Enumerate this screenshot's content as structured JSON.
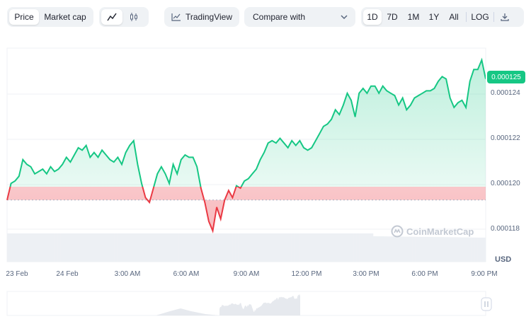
{
  "toolbar": {
    "price_label": "Price",
    "market_cap_label": "Market cap",
    "line_chart_icon": "line-chart-icon",
    "candlestick_icon": "candlestick-icon",
    "tradingview_label": "TradingView",
    "compare_label": "Compare with",
    "ranges": [
      "1D",
      "7D",
      "1M",
      "1Y",
      "All"
    ],
    "active_range": "1D",
    "log_label": "LOG",
    "download_icon": "download-icon"
  },
  "chart": {
    "current_price": "0.000125",
    "currency": "USD",
    "watermark": "CoinMarketCap",
    "up_color": "#16c784",
    "down_color": "#ea3943"
  },
  "chart_data": {
    "type": "area",
    "yticks": [
      "0.000124",
      "0.000122",
      "0.000120",
      "0.000118"
    ],
    "xticks": [
      "23 Feb",
      "24 Feb",
      "3:00 AM",
      "6:00 AM",
      "9:00 AM",
      "12:00 PM",
      "3:00 PM",
      "6:00 PM",
      "9:00 PM"
    ],
    "ylim": [
      0.0001172,
      0.0001262
    ],
    "baseline": 0.0001198,
    "series": [
      {
        "values": [
          0.0001198,
          0.0001205,
          0.0001206,
          0.0001208,
          0.0001215,
          0.0001213,
          0.0001212,
          0.0001209,
          0.000121,
          0.0001211,
          0.0001209,
          0.0001212,
          0.000121,
          0.0001211,
          0.0001213,
          0.0001216,
          0.0001214,
          0.0001217,
          0.000122,
          0.0001219,
          0.0001221,
          0.0001216,
          0.0001218,
          0.0001216,
          0.0001219,
          0.0001217,
          0.0001215,
          0.0001214,
          0.0001216,
          0.0001213,
          0.0001218,
          0.0001221,
          0.0001223,
          0.0001213,
          0.0001205,
          0.0001199,
          0.0001197,
          0.0001203,
          0.0001209,
          0.0001212,
          0.0001209,
          0.0001205,
          0.0001213,
          0.0001209,
          0.0001215,
          0.0001217,
          0.0001216,
          0.0001216,
          0.0001212,
          0.0001203,
          0.0001197,
          0.0001189,
          0.0001185,
          0.0001195,
          0.000119,
          0.0001198,
          0.0001202,
          0.0001199,
          0.0001204,
          0.0001203,
          0.0001206,
          0.0001207,
          0.0001209,
          0.0001211,
          0.0001215,
          0.0001218,
          0.0001222,
          0.0001223,
          0.0001222,
          0.0001224,
          0.0001222,
          0.000122,
          0.0001223,
          0.0001221,
          0.0001223,
          0.000122,
          0.0001219,
          0.000122,
          0.0001223,
          0.0001226,
          0.0001229,
          0.000123,
          0.0001232,
          0.0001236,
          0.0001234,
          0.0001238,
          0.0001243,
          0.000124,
          0.0001233,
          0.0001243,
          0.0001245,
          0.0001243,
          0.0001246,
          0.0001246,
          0.0001243,
          0.0001246,
          0.0001244,
          0.0001243,
          0.0001242,
          0.0001238,
          0.0001241,
          0.0001236,
          0.0001238,
          0.0001241,
          0.0001242,
          0.0001243,
          0.0001244,
          0.0001244,
          0.0001245,
          0.0001248,
          0.000125,
          0.0001249,
          0.0001241,
          0.0001237,
          0.0001239,
          0.000124,
          0.0001237,
          0.0001248,
          0.0001253,
          0.0001253,
          0.0001257,
          0.0001249
        ]
      }
    ]
  }
}
